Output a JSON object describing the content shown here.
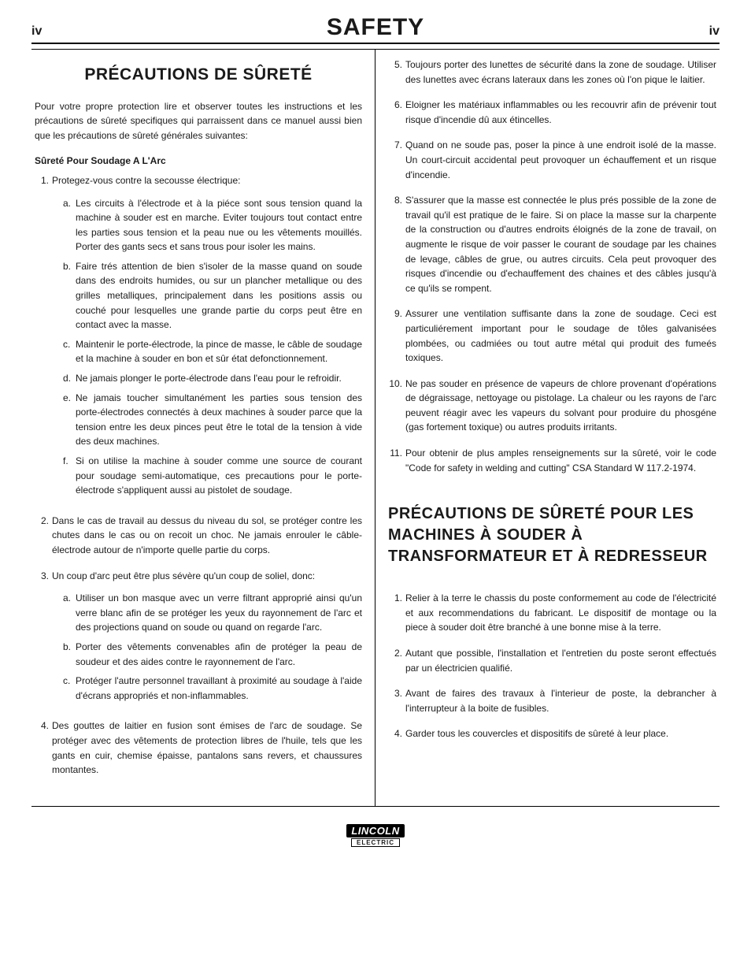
{
  "header": {
    "page_left": "iv",
    "title": "SAFETY",
    "page_right": "iv"
  },
  "left": {
    "title": "PRÉCAUTIONS DE SÛRETÉ",
    "intro": "Pour votre propre protection lire et observer toutes les instructions et les précautions de sûreté specifiques qui parraissent dans ce manuel aussi bien que les précautions de sûreté générales suivantes:",
    "subhead": "Sûreté Pour Soudage A L'Arc",
    "items": [
      {
        "n": "1.",
        "text": "Protegez-vous contre la secousse électrique:",
        "sub": [
          {
            "l": "a.",
            "t": "Les circuits à l'électrode et à la piéce sont sous tension quand la machine à souder est en marche. Eviter toujours tout contact entre les parties sous tension et la peau nue ou les vêtements mouillés. Porter des gants secs et sans trous pour isoler les mains."
          },
          {
            "l": "b.",
            "t": "Faire trés attention de bien s'isoler de la masse quand on soude dans des endroits humides, ou sur un plancher metallique ou des grilles metalliques, principalement dans les positions assis ou couché pour lesquelles une grande partie du corps peut être en contact avec la masse."
          },
          {
            "l": "c.",
            "t": "Maintenir le porte-électrode, la pince de masse, le câble de soudage et la machine à souder en bon et sûr état defonctionnement."
          },
          {
            "l": "d.",
            "t": "Ne jamais plonger le porte-électrode dans l'eau pour le refroidir."
          },
          {
            "l": "e.",
            "t": "Ne jamais toucher simultanément les parties sous tension des porte-électrodes connectés à deux machines à souder parce que la tension entre les deux pinces peut être le total de la tension à vide des deux machines."
          },
          {
            "l": "f.",
            "t": "Si on utilise la machine à souder comme une source de courant pour soudage semi-automatique, ces precautions pour le porte-électrode s'appliquent aussi au pistolet de soudage."
          }
        ]
      },
      {
        "n": "2.",
        "text": "Dans le cas de travail au dessus du niveau du sol, se protéger contre les chutes dans le cas ou on recoit un choc. Ne jamais enrouler le câble-électrode autour de n'importe quelle partie du corps."
      },
      {
        "n": "3.",
        "text": "Un coup d'arc peut être plus sévère qu'un coup de soliel, donc:",
        "sub": [
          {
            "l": "a.",
            "t": "Utiliser un bon masque avec un verre filtrant approprié ainsi qu'un verre blanc afin de se protéger les yeux du rayonnement de l'arc et des projections quand on soude ou quand on regarde l'arc."
          },
          {
            "l": "b.",
            "t": "Porter des vêtements convenables afin de protéger la peau de soudeur et des aides contre le rayonnement de l'arc."
          },
          {
            "l": "c.",
            "t": "Protéger l'autre personnel travaillant à proximité au soudage à l'aide d'écrans appropriés et non-inflammables."
          }
        ]
      },
      {
        "n": "4.",
        "text": "Des gouttes de laitier en fusion sont émises de l'arc de soudage. Se protéger avec des vêtements de protection libres de l'huile, tels que les gants en cuir, chemise épaisse, pantalons sans revers, et chaussures montantes."
      }
    ]
  },
  "right": {
    "items": [
      {
        "n": "5.",
        "text": "Toujours porter des lunettes de sécurité dans la zone de soudage. Utiliser des lunettes avec écrans lateraux dans les zones où l'on pique le laitier."
      },
      {
        "n": "6.",
        "text": "Eloigner les matériaux inflammables ou les recouvrir afin de prévenir tout risque d'incendie dû aux étincelles."
      },
      {
        "n": "7.",
        "text": "Quand on ne soude pas, poser la pince à une endroit isolé de la masse. Un court-circuit accidental peut provoquer un échauffement et un risque d'incendie."
      },
      {
        "n": "8.",
        "text": "S'assurer que la masse est connectée le plus prés possible de la zone de travail qu'il est pratique de le faire. Si on place la masse sur la charpente de la construction ou d'autres endroits éloignés de la zone de travail, on augmente le risque de voir passer le courant de soudage par les chaines de levage, câbles de grue, ou autres circuits. Cela peut provoquer des risques d'incendie ou d'echauffement des chaines et des câbles jusqu'à ce qu'ils se rompent."
      },
      {
        "n": "9.",
        "text": "Assurer une ventilation suffisante dans la zone de soudage. Ceci est particuliérement important pour le soudage de tôles galvanisées plombées, ou cadmiées ou tout autre métal qui produit des fumeés toxiques."
      },
      {
        "n": "10.",
        "text": "Ne pas souder en présence de vapeurs de chlore provenant d'opérations de dégraissage, nettoyage ou pistolage. La chaleur ou les rayons de l'arc peuvent réagir avec les vapeurs du solvant pour produire du phosgéne (gas fortement toxique) ou autres produits irritants."
      },
      {
        "n": "11.",
        "text": "Pour obtenir de plus amples renseignements sur la sûreté, voir le code \"Code for safety in welding and cutting\" CSA Standard W 117.2-1974."
      }
    ],
    "title2": "PRÉCAUTIONS DE SÛRETÉ POUR LES MACHINES À SOUDER À TRANSFORMATEUR ET À REDRESSEUR",
    "items2": [
      {
        "n": "1.",
        "text": "Relier à la terre le chassis du poste conformement au code de l'électricité et aux recommendations du fabricant. Le dispositif de montage ou la piece à souder doit être branché à une bonne mise à la terre."
      },
      {
        "n": "2.",
        "text": "Autant que possible, l'installation et l'entretien du poste seront effectués par un électricien qualifié."
      },
      {
        "n": "3.",
        "text": "Avant de faires des travaux à l'interieur de poste, la debrancher à l'interrupteur à la boite de fusibles."
      },
      {
        "n": "4.",
        "text": "Garder tous les couvercles et dispositifs de sûreté à leur place."
      }
    ]
  },
  "logo": {
    "top": "LINCOLN",
    "bottom": "ELECTRIC"
  }
}
